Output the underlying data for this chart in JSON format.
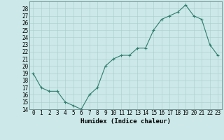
{
  "x": [
    0,
    1,
    2,
    3,
    4,
    5,
    6,
    7,
    8,
    9,
    10,
    11,
    12,
    13,
    14,
    15,
    16,
    17,
    18,
    19,
    20,
    21,
    22,
    23
  ],
  "y": [
    19,
    17,
    16.5,
    16.5,
    15,
    14.5,
    14,
    16,
    17,
    20,
    21,
    21.5,
    21.5,
    22.5,
    22.5,
    25,
    26.5,
    27,
    27.5,
    28.5,
    27,
    26.5,
    23,
    21.5
  ],
  "line_color": "#2e7d6e",
  "marker_color": "#2e7d6e",
  "bg_color": "#cce8e8",
  "grid_color": "#aacccc",
  "xlabel": "Humidex (Indice chaleur)",
  "ylim": [
    14,
    29
  ],
  "xlim": [
    -0.5,
    23.5
  ],
  "yticks": [
    14,
    15,
    16,
    17,
    18,
    19,
    20,
    21,
    22,
    23,
    24,
    25,
    26,
    27,
    28
  ],
  "xticks": [
    0,
    1,
    2,
    3,
    4,
    5,
    6,
    7,
    8,
    9,
    10,
    11,
    12,
    13,
    14,
    15,
    16,
    17,
    18,
    19,
    20,
    21,
    22,
    23
  ],
  "label_fontsize": 6.5,
  "tick_fontsize": 5.5
}
